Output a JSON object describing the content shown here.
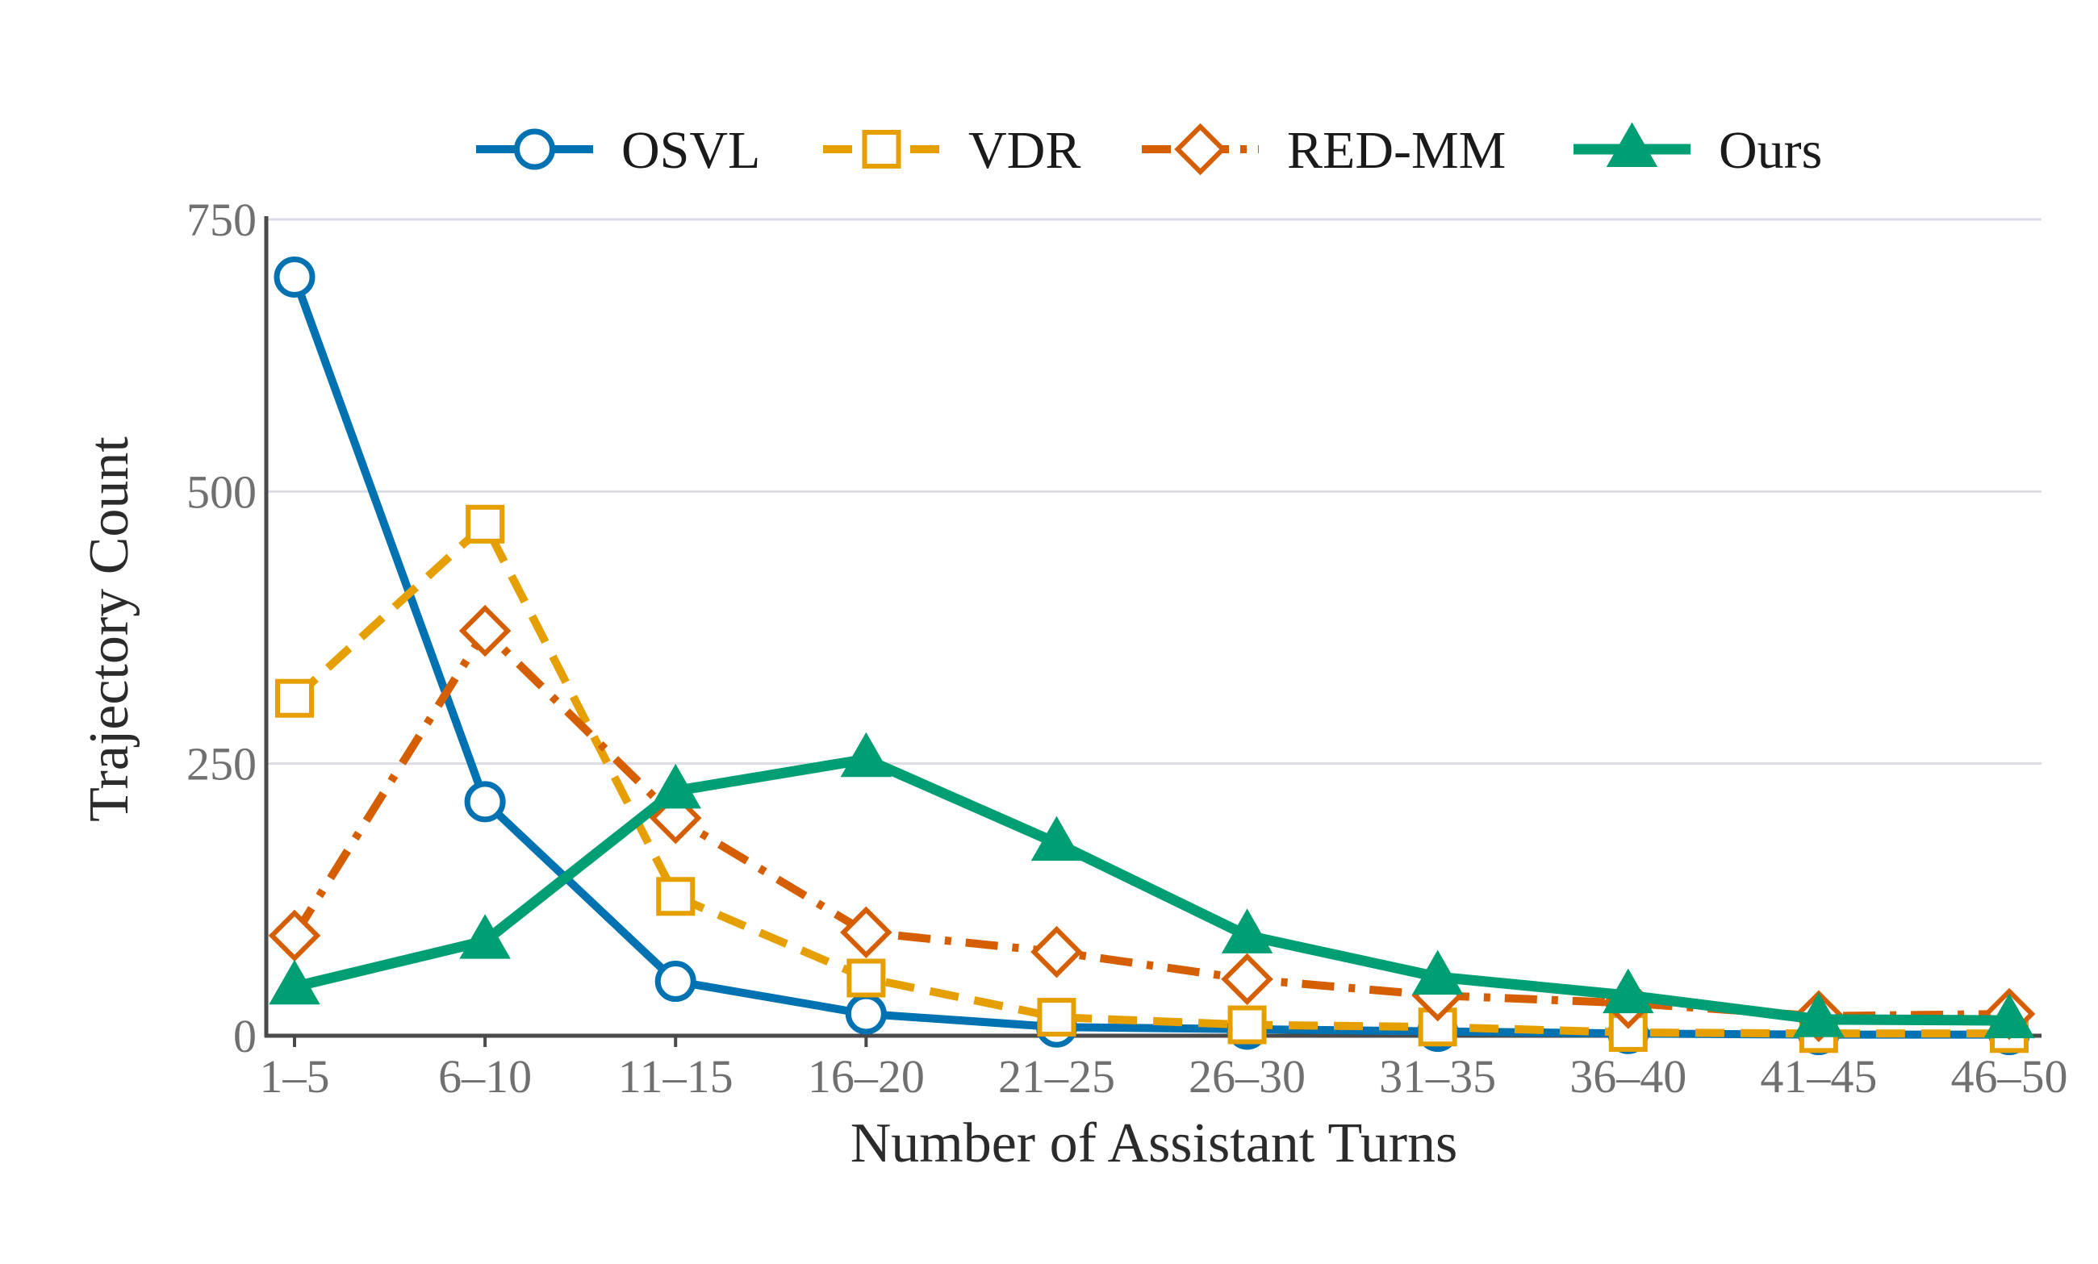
{
  "chart_data": {
    "type": "line",
    "xlabel": "Number of Assistant Turns",
    "ylabel": "Trajectory Count",
    "categories": [
      "1–5",
      "6–10",
      "11–15",
      "16–20",
      "21–25",
      "26–30",
      "31–35",
      "36–40",
      "41–45",
      "46–50"
    ],
    "ylim": [
      0,
      750
    ],
    "yticks": [
      "0",
      "250",
      "500",
      "750"
    ],
    "ytick_values": [
      0,
      250,
      500,
      750
    ],
    "grid": "horizontal",
    "legend_position": "top",
    "series": [
      {
        "name": "OSVL",
        "color": "#0072b2",
        "dash": "solid",
        "marker": "circle",
        "values": [
          697,
          215,
          50,
          20,
          8,
          6,
          4,
          2,
          1,
          1
        ]
      },
      {
        "name": "VDR",
        "color": "#e69f00",
        "dash": "dashed",
        "marker": "square",
        "values": [
          310,
          470,
          128,
          53,
          17,
          10,
          8,
          3,
          2,
          2
        ]
      },
      {
        "name": "RED-MM",
        "color": "#d55e00",
        "dash": "dashdot",
        "marker": "diamond",
        "values": [
          92,
          372,
          200,
          95,
          77,
          52,
          37,
          30,
          18,
          20
        ]
      },
      {
        "name": "Ours",
        "color": "#009e73",
        "dash": "solid",
        "marker": "triangle",
        "values": [
          45,
          87,
          225,
          254,
          177,
          92,
          54,
          37,
          15,
          14
        ]
      }
    ]
  }
}
